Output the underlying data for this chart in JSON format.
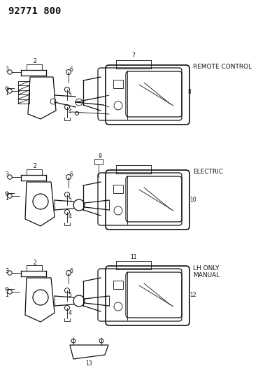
{
  "title_text": "92771 800",
  "title_fontsize": 10,
  "title_fontweight": "bold",
  "bg_color": "#ffffff",
  "text_color": "#111111",
  "line_color": "#111111",
  "label_fontsize": 5.5,
  "annot_fontsize": 6.5,
  "labels": {
    "remote_control": "REMOTE CONTROL",
    "electric": "ELECTRIC",
    "lh_only": "LH ONLY",
    "manual": "MANUAL"
  },
  "sections": [
    {
      "name": "remote_control",
      "oy": 355
    },
    {
      "name": "electric",
      "oy": 205
    },
    {
      "name": "manual",
      "oy": 68
    }
  ]
}
